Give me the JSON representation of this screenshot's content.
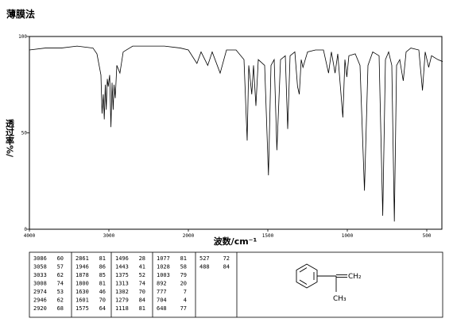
{
  "title": "薄膜法",
  "chart_data": {
    "type": "line",
    "xlabel": "波数/cm⁻¹",
    "ylabel": "透过率%/",
    "xlim": [
      4000,
      400
    ],
    "ylim": [
      0,
      100
    ],
    "xticks": [
      4000,
      3000,
      2000,
      1500,
      1000,
      500
    ],
    "yticks": [
      0,
      50,
      100
    ],
    "color": "#000000",
    "x": [
      4000,
      3800,
      3600,
      3400,
      3200,
      3150,
      3100,
      3086,
      3070,
      3058,
      3045,
      3033,
      3020,
      3008,
      2990,
      2974,
      2960,
      2946,
      2935,
      2920,
      2900,
      2861,
      2820,
      2700,
      2500,
      2300,
      2100,
      2000,
      1946,
      1920,
      1878,
      1850,
      1800,
      1760,
      1700,
      1650,
      1630,
      1620,
      1601,
      1590,
      1575,
      1560,
      1520,
      1496,
      1480,
      1460,
      1443,
      1420,
      1390,
      1375,
      1360,
      1330,
      1313,
      1302,
      1290,
      1279,
      1250,
      1200,
      1150,
      1118,
      1100,
      1077,
      1060,
      1028,
      1015,
      1003,
      990,
      950,
      920,
      892,
      870,
      840,
      800,
      777,
      760,
      740,
      720,
      704,
      690,
      670,
      648,
      630,
      600,
      550,
      527,
      510,
      488,
      470,
      430,
      400
    ],
    "values": [
      93,
      94,
      94,
      95,
      94,
      91,
      80,
      60,
      70,
      57,
      75,
      62,
      78,
      74,
      80,
      53,
      76,
      62,
      75,
      68,
      85,
      81,
      92,
      95,
      95,
      95,
      94,
      93,
      86,
      92,
      85,
      92,
      81,
      93,
      93,
      88,
      46,
      85,
      70,
      85,
      64,
      88,
      85,
      28,
      85,
      88,
      41,
      88,
      90,
      52,
      90,
      92,
      74,
      70,
      88,
      84,
      92,
      93,
      93,
      81,
      92,
      81,
      91,
      58,
      88,
      79,
      90,
      91,
      85,
      20,
      85,
      92,
      90,
      7,
      88,
      92,
      85,
      4,
      85,
      88,
      77,
      92,
      94,
      93,
      72,
      92,
      84,
      90,
      88,
      87
    ]
  },
  "peak_table": [
    [
      [
        3086,
        60
      ],
      [
        3058,
        57
      ],
      [
        3033,
        62
      ],
      [
        3008,
        74
      ],
      [
        2974,
        53
      ],
      [
        2946,
        62
      ],
      [
        2920,
        68
      ]
    ],
    [
      [
        2861,
        81
      ],
      [
        1946,
        86
      ],
      [
        1878,
        85
      ],
      [
        1800,
        81
      ],
      [
        1630,
        46
      ],
      [
        1601,
        70
      ],
      [
        1575,
        64
      ]
    ],
    [
      [
        1496,
        28
      ],
      [
        1443,
        41
      ],
      [
        1375,
        52
      ],
      [
        1313,
        74
      ],
      [
        1302,
        70
      ],
      [
        1279,
        84
      ],
      [
        1118,
        81
      ]
    ],
    [
      [
        1077,
        81
      ],
      [
        1028,
        58
      ],
      [
        1003,
        79
      ],
      [
        892,
        20
      ],
      [
        777,
        7
      ],
      [
        704,
        4
      ],
      [
        648,
        77
      ]
    ],
    [
      [
        527,
        72
      ],
      [
        488,
        84
      ]
    ]
  ],
  "structure": {
    "labels": [
      "CH₂",
      "CH₃"
    ]
  }
}
